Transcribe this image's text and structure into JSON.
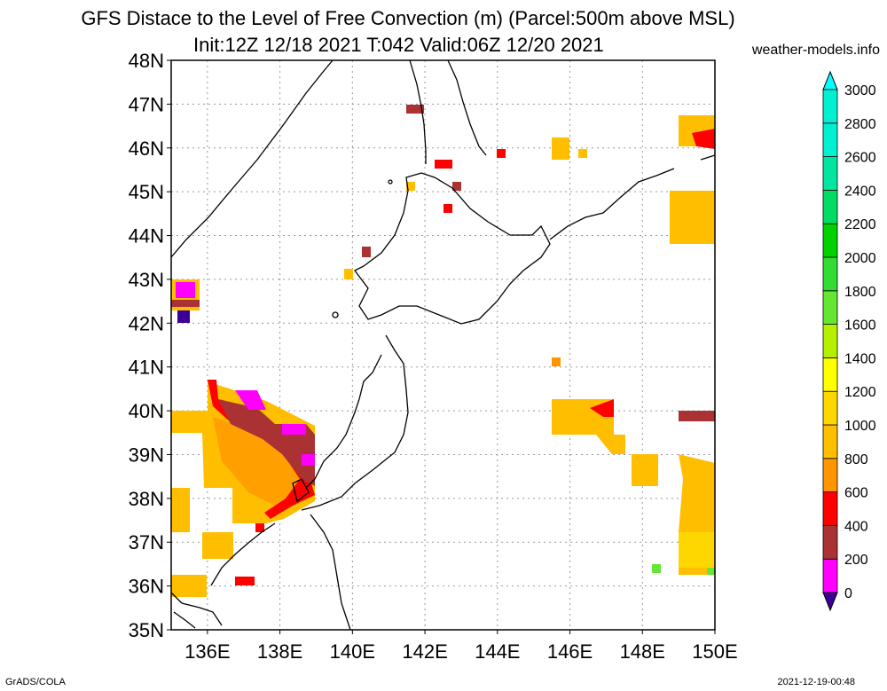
{
  "title_line1": "GFS Distace to the Level of Free Convection (m) (Parcel:500m above MSL)",
  "title_line2": "Init:12Z 12/18 2021 T:042 Valid:06Z 12/20 2021",
  "credit": "weather-models.info",
  "footer_left": "GrADS/COLA",
  "footer_right": "2021-12-19-00:48",
  "map": {
    "lon_range": [
      135,
      150
    ],
    "lat_range": [
      35,
      48
    ],
    "lon_ticks": [
      "136E",
      "138E",
      "140E",
      "142E",
      "144E",
      "146E",
      "148E",
      "150E"
    ],
    "lat_ticks": [
      "35N",
      "36N",
      "37N",
      "38N",
      "39N",
      "40N",
      "41N",
      "42N",
      "43N",
      "44N",
      "45N",
      "46N",
      "47N",
      "48N"
    ],
    "grid": "dotted"
  },
  "legend": {
    "labels": [
      "0",
      "200",
      "400",
      "600",
      "800",
      "1000",
      "1200",
      "1400",
      "1600",
      "1800",
      "2000",
      "2200",
      "2400",
      "2600",
      "2800",
      "3000"
    ],
    "colors": [
      "#3c0096",
      "#ff00ff",
      "#aa3232",
      "#ff0000",
      "#ff9600",
      "#ffbe00",
      "#ffd700",
      "#ffff00",
      "#b4f000",
      "#64e632",
      "#32dc32",
      "#00d200",
      "#00dc64",
      "#00e6a0",
      "#00f0d2",
      "#00ffff"
    ]
  }
}
